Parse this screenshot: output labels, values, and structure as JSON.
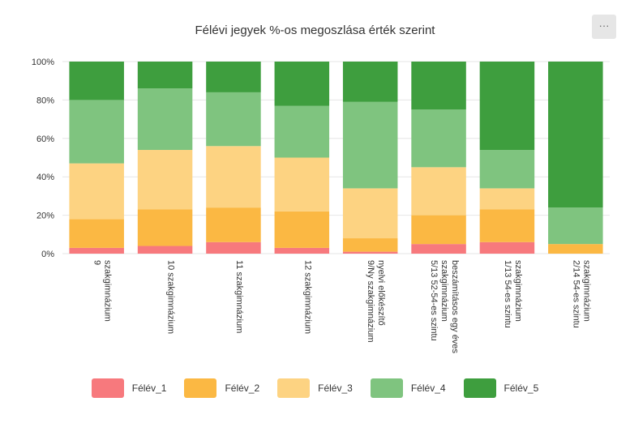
{
  "menu_button_label": "···",
  "chart_data": {
    "type": "bar",
    "stacked": true,
    "normalized": true,
    "title": "Félévi jegyek %-os megoszlása érték szerint",
    "xlabel": "",
    "ylabel": "",
    "ylim": [
      0,
      100
    ],
    "yticks": [
      "0%",
      "20%",
      "40%",
      "60%",
      "80%",
      "100%"
    ],
    "grid": true,
    "legend_position": "bottom",
    "categories": [
      [
        "9",
        "szakgimnázium"
      ],
      [
        "10 szakgimnázium"
      ],
      [
        "11 szakgimnázium"
      ],
      [
        "12 szakgimnázium"
      ],
      [
        "9/Ny szakgimnázium",
        "nyelvi előkészítő"
      ],
      [
        "5/13 52-54-es szintu",
        "szakgimnázium",
        "beszámításos egy éves"
      ],
      [
        "1/13 54-es szintu",
        "szakgimnázium"
      ],
      [
        "2/14 54-es szintu",
        "szakgimnázium"
      ]
    ],
    "series": [
      {
        "name": "Félév_1",
        "color": "#f7797d",
        "values": [
          3,
          4,
          6,
          3,
          1,
          5,
          6,
          0
        ]
      },
      {
        "name": "Félév_2",
        "color": "#fbb843",
        "values": [
          15,
          19,
          18,
          19,
          7,
          15,
          17,
          5
        ]
      },
      {
        "name": "Félév_3",
        "color": "#fdd382",
        "values": [
          29,
          31,
          32,
          28,
          26,
          25,
          11,
          0
        ]
      },
      {
        "name": "Félév_4",
        "color": "#7fc47f",
        "values": [
          33,
          32,
          28,
          27,
          45,
          30,
          20,
          19
        ]
      },
      {
        "name": "Félév_5",
        "color": "#3e9e3e",
        "values": [
          20,
          14,
          16,
          23,
          21,
          25,
          46,
          76
        ]
      }
    ]
  }
}
